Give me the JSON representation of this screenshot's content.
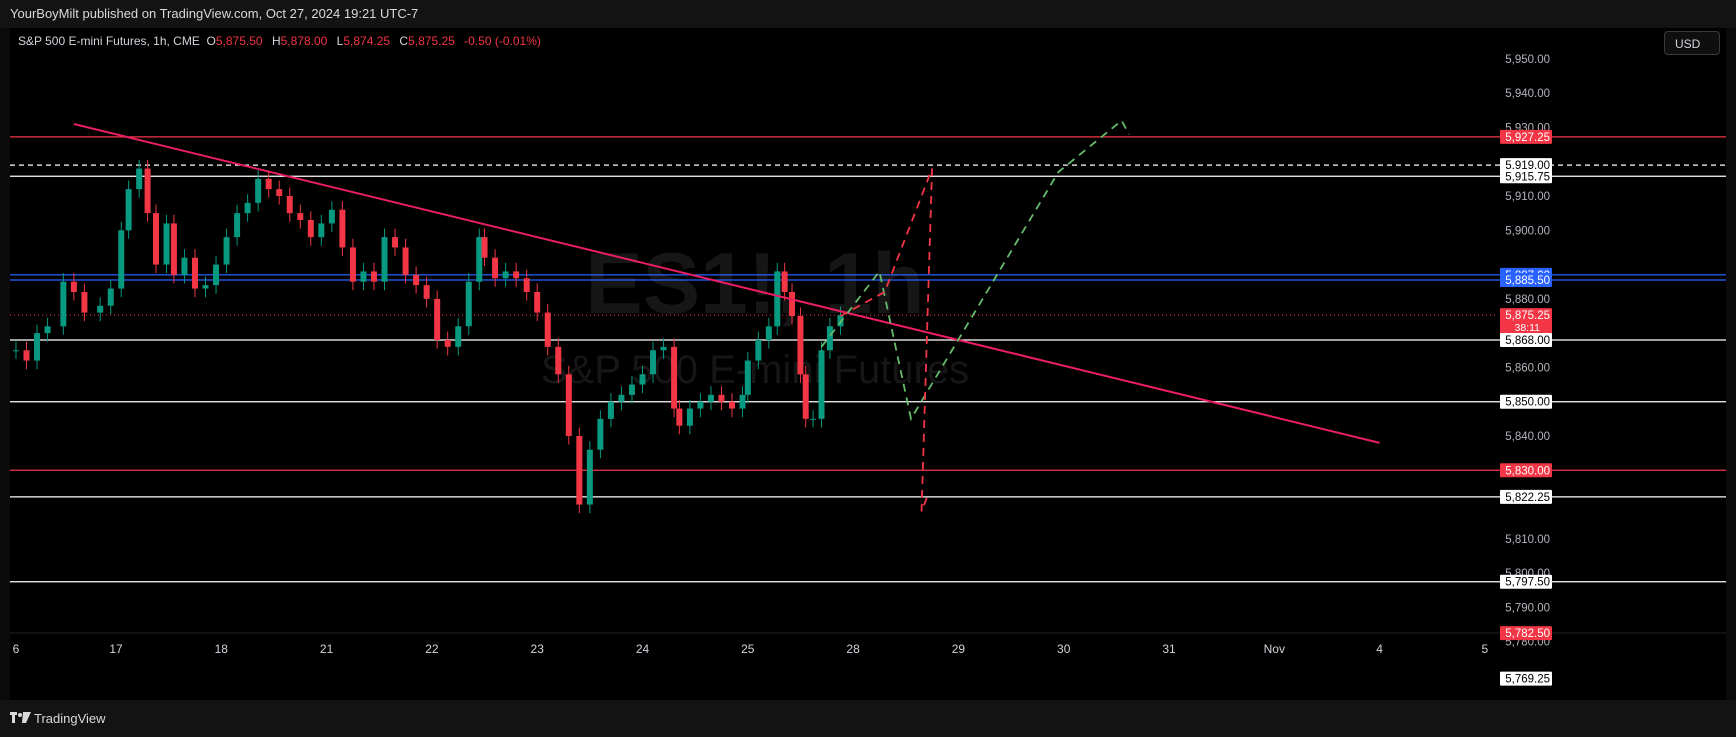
{
  "publication": {
    "text": "YourBoyMilt published on TradingView.com, Oct 27, 2024 19:21 UTC-7"
  },
  "legend": {
    "symbol": "S&P 500 E-mini Futures, 1h, CME",
    "open_label": "O",
    "open": "5,875.50",
    "high_label": "H",
    "high": "5,878.00",
    "low_label": "L",
    "low": "5,874.25",
    "close_label": "C",
    "close": "5,875.25",
    "change": "-0.50 (-0.01%)"
  },
  "currency": "USD",
  "watermark": {
    "ticker": "ES1!, 1h",
    "name": "S&P 500 E-mini Futures"
  },
  "footer": {
    "brand": "TradingView"
  },
  "colors": {
    "background": "#000000",
    "up": "#089981",
    "down": "#f23645",
    "trendline": "#e91e63",
    "blue_line": "#2962ff",
    "projection_green": "#66bb6a",
    "projection_red": "#f23645"
  },
  "chart_data": {
    "type": "candlestick",
    "symbol": "ES1!",
    "interval": "1h",
    "ylim": [
      5763,
      5959
    ],
    "y_ticks": [
      "5,950.00",
      "5,940.00",
      "5,930.00",
      "5,919.00",
      "5,910.00",
      "5,900.00",
      "5,880.00",
      "5,860.00",
      "5,840.00",
      "5,810.00",
      "5,800.00",
      "5,790.00",
      "5,780.00"
    ],
    "x_ticks": [
      {
        "label": "6",
        "x": -0.95
      },
      {
        "label": "17",
        "x": 0
      },
      {
        "label": "18",
        "x": 1
      },
      {
        "label": "21",
        "x": 2
      },
      {
        "label": "22",
        "x": 3
      },
      {
        "label": "23",
        "x": 4
      },
      {
        "label": "24",
        "x": 5
      },
      {
        "label": "25",
        "x": 6
      },
      {
        "label": "28",
        "x": 7
      },
      {
        "label": "29",
        "x": 8
      },
      {
        "label": "30",
        "x": 9
      },
      {
        "label": "31",
        "x": 10
      },
      {
        "label": "Nov",
        "x": 11
      },
      {
        "label": "4",
        "x": 12
      },
      {
        "label": "5",
        "x": 13
      }
    ],
    "price_series": [
      [
        -0.95,
        5865
      ],
      [
        -0.85,
        5862
      ],
      [
        -0.75,
        5870
      ],
      [
        -0.65,
        5872
      ],
      [
        -0.5,
        5885
      ],
      [
        -0.4,
        5882
      ],
      [
        -0.3,
        5876
      ],
      [
        -0.15,
        5878
      ],
      [
        -0.05,
        5883
      ],
      [
        0.05,
        5900
      ],
      [
        0.12,
        5912
      ],
      [
        0.22,
        5918
      ],
      [
        0.3,
        5905
      ],
      [
        0.38,
        5890
      ],
      [
        0.48,
        5902
      ],
      [
        0.55,
        5887
      ],
      [
        0.65,
        5892
      ],
      [
        0.75,
        5883
      ],
      [
        0.85,
        5884
      ],
      [
        0.95,
        5890
      ],
      [
        1.05,
        5898
      ],
      [
        1.15,
        5905
      ],
      [
        1.25,
        5908
      ],
      [
        1.35,
        5915
      ],
      [
        1.45,
        5912
      ],
      [
        1.55,
        5910
      ],
      [
        1.65,
        5905
      ],
      [
        1.75,
        5903
      ],
      [
        1.85,
        5898
      ],
      [
        1.95,
        5902
      ],
      [
        2.05,
        5906
      ],
      [
        2.15,
        5895
      ],
      [
        2.25,
        5885
      ],
      [
        2.35,
        5888
      ],
      [
        2.45,
        5885
      ],
      [
        2.55,
        5898
      ],
      [
        2.65,
        5895
      ],
      [
        2.75,
        5887
      ],
      [
        2.85,
        5884
      ],
      [
        2.95,
        5880
      ],
      [
        3.05,
        5868
      ],
      [
        3.15,
        5866
      ],
      [
        3.25,
        5872
      ],
      [
        3.35,
        5885
      ],
      [
        3.45,
        5898
      ],
      [
        3.5,
        5892
      ],
      [
        3.6,
        5886
      ],
      [
        3.7,
        5888
      ],
      [
        3.8,
        5886
      ],
      [
        3.9,
        5882
      ],
      [
        4.0,
        5876
      ],
      [
        4.1,
        5866
      ],
      [
        4.2,
        5858
      ],
      [
        4.3,
        5840
      ],
      [
        4.4,
        5820
      ],
      [
        4.5,
        5836
      ],
      [
        4.6,
        5845
      ],
      [
        4.7,
        5850
      ],
      [
        4.8,
        5852
      ],
      [
        4.9,
        5855
      ],
      [
        5.0,
        5858
      ],
      [
        5.1,
        5865
      ],
      [
        5.2,
        5866
      ],
      [
        5.3,
        5848
      ],
      [
        5.35,
        5843
      ],
      [
        5.45,
        5848
      ],
      [
        5.55,
        5850
      ],
      [
        5.65,
        5852
      ],
      [
        5.75,
        5850
      ],
      [
        5.85,
        5848
      ],
      [
        5.95,
        5852
      ],
      [
        6.0,
        5862
      ],
      [
        6.1,
        5868
      ],
      [
        6.2,
        5872
      ],
      [
        6.28,
        5888
      ],
      [
        6.35,
        5882
      ],
      [
        6.42,
        5875
      ],
      [
        6.5,
        5858
      ],
      [
        6.55,
        5845
      ],
      [
        6.62,
        5845
      ],
      [
        6.7,
        5865
      ],
      [
        6.78,
        5872
      ],
      [
        6.88,
        5875.25
      ]
    ],
    "horizontal_levels": [
      {
        "price": 5927.25,
        "label": "5,927.25",
        "color": "#f23645"
      },
      {
        "price": 5919.0,
        "label": "5,919.00",
        "color": "#ffffff",
        "style": "dashed"
      },
      {
        "price": 5915.75,
        "label": "5,915.75",
        "color": "#ffffff"
      },
      {
        "price": 5887.0,
        "label": "5,887.00",
        "color": "#2962ff"
      },
      {
        "price": 5885.5,
        "label": "5,885.50",
        "color": "#2962ff"
      },
      {
        "price": 5875.25,
        "label": "5,875.25",
        "color": "#f23645",
        "style": "dotted",
        "countdown": "38:11"
      },
      {
        "price": 5868.0,
        "label": "5,868.00",
        "color": "#ffffff"
      },
      {
        "price": 5850.0,
        "label": "5,850.00",
        "color": "#ffffff"
      },
      {
        "price": 5830.0,
        "label": "5,830.00",
        "color": "#f23645"
      },
      {
        "price": 5822.25,
        "label": "5,822.25",
        "color": "#ffffff"
      },
      {
        "price": 5797.5,
        "label": "5,797.50",
        "color": "#ffffff"
      },
      {
        "price": 5782.5,
        "label": "5,782.50",
        "color": "#f23645"
      },
      {
        "price": 5769.25,
        "label": "5,769.25",
        "color": "#ffffff"
      }
    ],
    "trendline": {
      "from": [
        -0.4,
        5931
      ],
      "to": [
        12.0,
        5838
      ],
      "color": "#e91e63"
    },
    "projections": [
      {
        "color": "#66bb6a",
        "points": [
          [
            6.7,
            5866
          ],
          [
            7.25,
            5888
          ],
          [
            7.55,
            5845
          ],
          [
            8.95,
            5917
          ],
          [
            9.55,
            5932
          ],
          [
            9.62,
            5928
          ]
        ]
      },
      {
        "color": "#f23645",
        "points": [
          [
            6.88,
            5875
          ],
          [
            7.3,
            5882
          ],
          [
            7.75,
            5918
          ],
          [
            7.65,
            5818
          ],
          [
            7.7,
            5822
          ]
        ]
      }
    ],
    "event_marker": {
      "x": 6.8,
      "price": 5772
    }
  }
}
